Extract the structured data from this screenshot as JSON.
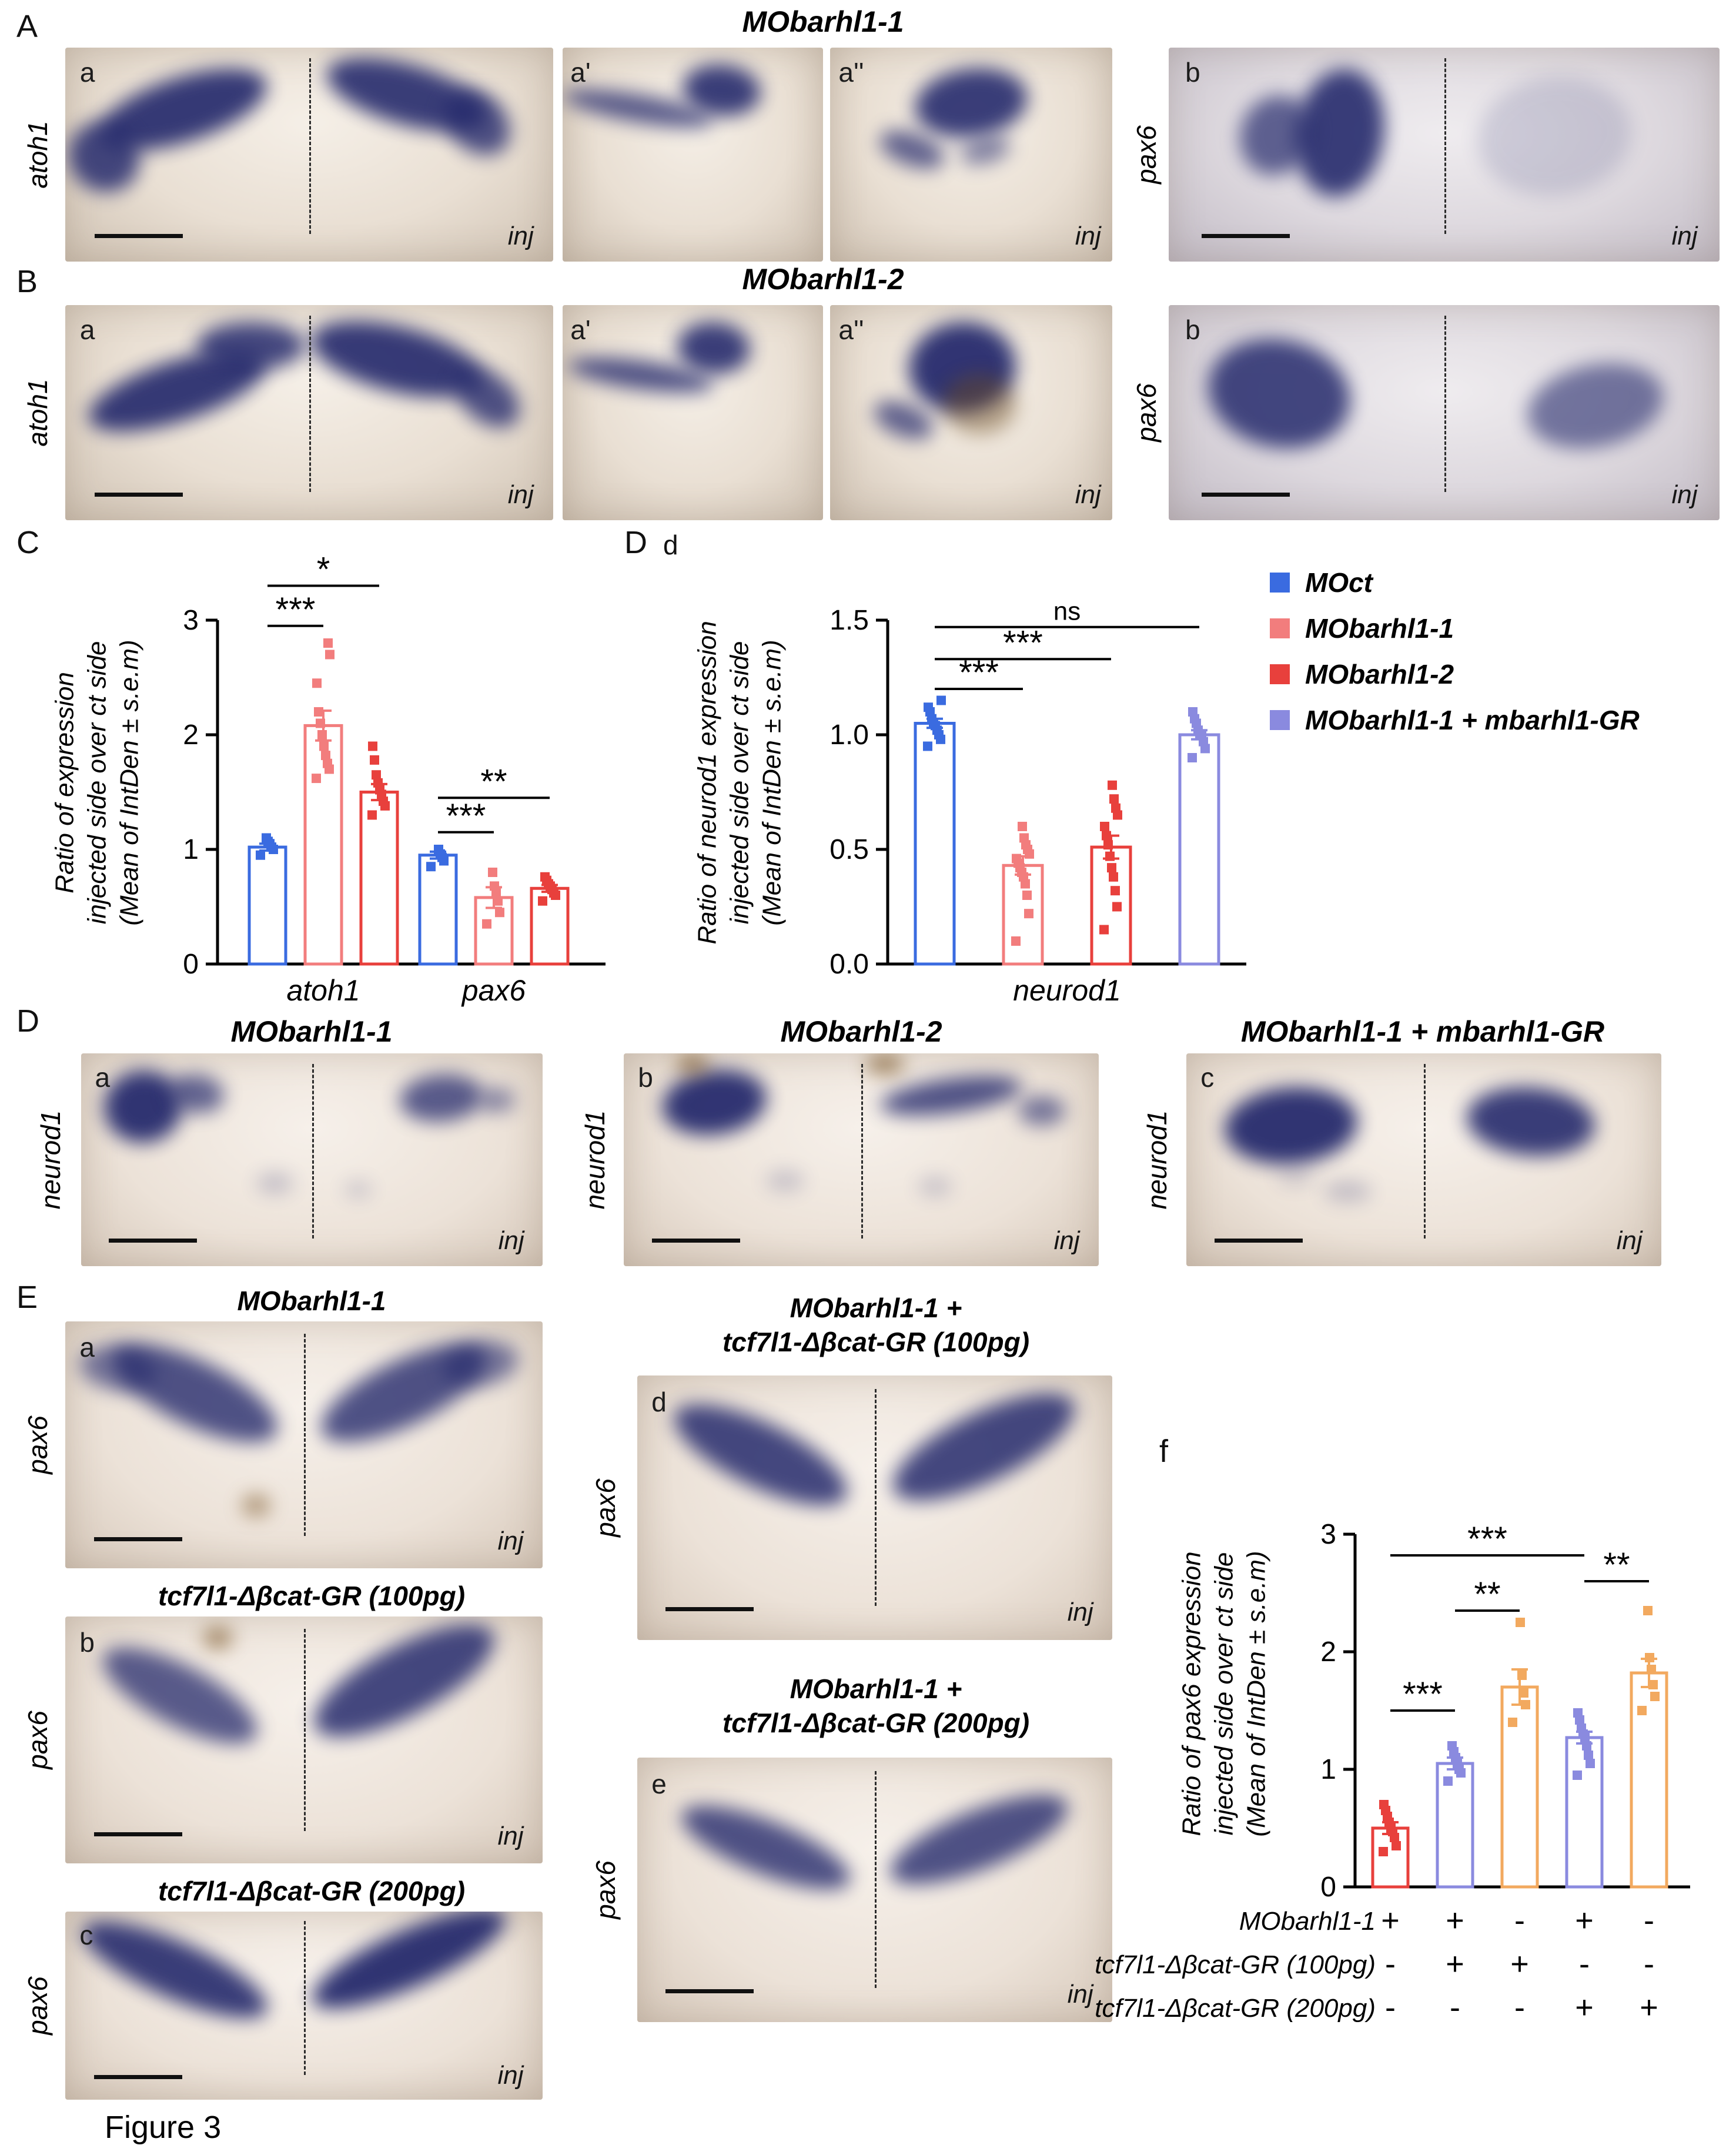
{
  "figure_label": "Figure 3",
  "panel_letters": {
    "A": "A",
    "B": "B",
    "C": "C",
    "D_chart": "D",
    "D_chart_sub": "d",
    "D_img": "D",
    "E": "E",
    "f": "f"
  },
  "panels": {
    "A": {
      "title": "MObarhl1-1",
      "gene_left": "atoh1",
      "gene_right": "pax6",
      "images": [
        {
          "letter": "a",
          "inj": "inj"
        },
        {
          "letter": "a'",
          "inj": ""
        },
        {
          "letter": "a''",
          "inj": "inj"
        },
        {
          "letter": "b",
          "inj": "inj"
        }
      ]
    },
    "B": {
      "title": "MObarhl1-2",
      "gene_left": "atoh1",
      "gene_right": "pax6",
      "images": [
        {
          "letter": "a",
          "inj": "inj"
        },
        {
          "letter": "a'",
          "inj": ""
        },
        {
          "letter": "a''",
          "inj": "inj"
        },
        {
          "letter": "b",
          "inj": "inj"
        }
      ]
    },
    "D_images": {
      "columns": [
        {
          "title": "MObarhl1-1",
          "gene": "neurod1",
          "letter": "a",
          "inj": "inj"
        },
        {
          "title": "MObarhl1-2",
          "gene": "neurod1",
          "letter": "b",
          "inj": "inj"
        },
        {
          "title": "MObarhl1-1 + mbarhl1-GR",
          "gene": "neurod1",
          "letter": "c",
          "inj": "inj"
        }
      ]
    },
    "E": {
      "left": [
        {
          "title": "MObarhl1-1",
          "gene": "pax6",
          "letter": "a",
          "inj": "inj"
        },
        {
          "title": "tcf7l1-Δβcat-GR (100pg)",
          "gene": "pax6",
          "letter": "b",
          "inj": "inj"
        },
        {
          "title": "tcf7l1-Δβcat-GR (200pg)",
          "gene": "pax6",
          "letter": "c",
          "inj": "inj"
        }
      ],
      "middle": [
        {
          "title_line1": "MObarhl1-1 +",
          "title_line2": "tcf7l1-Δβcat-GR (100pg)",
          "gene": "pax6",
          "letter": "d",
          "inj": "inj"
        },
        {
          "title_line1": "MObarhl1-1 +",
          "title_line2": "tcf7l1-Δβcat-GR (200pg)",
          "gene": "pax6",
          "letter": "e",
          "inj": "inj"
        }
      ]
    }
  },
  "legend": {
    "items": [
      {
        "label": "MOct",
        "color": "#3A6BE0"
      },
      {
        "label": "MObarhl1-1",
        "color": "#F27D7D"
      },
      {
        "label": "MObarhl1-2",
        "color": "#E8403C"
      },
      {
        "label": "MObarhl1-1 + mbarhl1-GR",
        "color": "#8A8ADF"
      }
    ]
  },
  "chart_data": [
    {
      "id": "C",
      "type": "bar",
      "ylabel_lines": [
        "Ratio of expression",
        "injected side over ct side",
        "(Mean of IntDen ± s.e.m)"
      ],
      "ylim": [
        0,
        3
      ],
      "yticks": [
        "0",
        "1",
        "2",
        "3"
      ],
      "categories": [
        "atoh1",
        "pax6"
      ],
      "series": [
        {
          "name": "MOct",
          "color": "#3A6BE0",
          "values": [
            1.02,
            0.95
          ],
          "sem": [
            0.03,
            0.03
          ],
          "points": [
            [
              0.95,
              1.0,
              1.02,
              1.05,
              1.07,
              1.1
            ],
            [
              0.85,
              0.9,
              0.93,
              0.96,
              1.0
            ]
          ]
        },
        {
          "name": "MObarhl1-1",
          "color": "#F27D7D",
          "values": [
            2.08,
            0.58
          ],
          "sem": [
            0.13,
            0.09
          ],
          "points": [
            [
              1.62,
              1.7,
              1.75,
              1.82,
              1.9,
              2.0,
              2.1,
              2.2,
              2.45,
              2.7,
              2.8
            ],
            [
              0.35,
              0.45,
              0.55,
              0.62,
              0.68,
              0.8
            ]
          ]
        },
        {
          "name": "MObarhl1-2",
          "color": "#E8403C",
          "values": [
            1.5,
            0.66
          ],
          "sem": [
            0.07,
            0.03
          ],
          "points": [
            [
              1.3,
              1.38,
              1.42,
              1.48,
              1.52,
              1.58,
              1.65,
              1.78,
              1.9
            ],
            [
              0.55,
              0.6,
              0.62,
              0.65,
              0.68,
              0.7,
              0.73,
              0.76
            ]
          ]
        }
      ],
      "brackets": [
        {
          "from": 0,
          "to": 1,
          "y": 2.95,
          "label": "***"
        },
        {
          "from": 0,
          "to": 2,
          "y": 3.3,
          "label": "*"
        },
        {
          "from": 3,
          "to": 4,
          "y": 1.15,
          "label": "***"
        },
        {
          "from": 3,
          "to": 5,
          "y": 1.45,
          "label": "**"
        }
      ]
    },
    {
      "id": "D",
      "type": "bar",
      "ylabel_lines": [
        "Ratio of neurod1 expression",
        "injected side over ct side",
        "(Mean of IntDen ± s.e.m)"
      ],
      "ylim": [
        0,
        1.5
      ],
      "yticks": [
        "0.0",
        "0.5",
        "1.0",
        "1.5"
      ],
      "categories": [
        "neurod1"
      ],
      "bars": [
        {
          "name": "MOct",
          "color": "#3A6BE0",
          "value": 1.05,
          "sem": 0.02,
          "points": [
            0.95,
            0.98,
            1.0,
            1.02,
            1.04,
            1.05,
            1.07,
            1.1,
            1.12,
            1.15
          ]
        },
        {
          "name": "MObarhl1-1",
          "color": "#F27D7D",
          "value": 0.43,
          "sem": 0.04,
          "points": [
            0.1,
            0.22,
            0.3,
            0.35,
            0.38,
            0.4,
            0.42,
            0.44,
            0.46,
            0.48,
            0.5,
            0.52,
            0.55,
            0.6
          ]
        },
        {
          "name": "MObarhl1-2",
          "color": "#E8403C",
          "value": 0.51,
          "sem": 0.05,
          "points": [
            0.15,
            0.25,
            0.32,
            0.38,
            0.42,
            0.47,
            0.52,
            0.56,
            0.6,
            0.65,
            0.68,
            0.72,
            0.78
          ]
        },
        {
          "name": "MObarhl1-1 + mbarhl1-GR",
          "color": "#8A8ADF",
          "value": 1.0,
          "sem": 0.02,
          "points": [
            0.9,
            0.94,
            0.97,
            1.0,
            1.0,
            1.02,
            1.05,
            1.07,
            1.1
          ]
        }
      ],
      "brackets": [
        {
          "from": 0,
          "to": 1,
          "y": 1.2,
          "label": "***"
        },
        {
          "from": 0,
          "to": 2,
          "y": 1.33,
          "label": "***"
        },
        {
          "from": 0,
          "to": 3,
          "y": 1.47,
          "label": "ns"
        }
      ]
    },
    {
      "id": "f",
      "type": "bar",
      "ylabel_lines": [
        "Ratio of pax6 expression",
        "injected side over ct side",
        "(Mean of IntDen ± s.e.m)"
      ],
      "ylim": [
        0,
        3
      ],
      "yticks": [
        "0",
        "1",
        "2",
        "3"
      ],
      "categories": [],
      "bars": [
        {
          "color": "#E8403C",
          "value": 0.5,
          "sem": 0.05,
          "points": [
            0.3,
            0.35,
            0.42,
            0.47,
            0.5,
            0.55,
            0.6,
            0.65,
            0.7
          ]
        },
        {
          "color": "#8A8ADF",
          "value": 1.05,
          "sem": 0.05,
          "points": [
            0.9,
            0.97,
            1.0,
            1.05,
            1.1,
            1.15,
            1.2
          ]
        },
        {
          "color": "#F2A95F",
          "value": 1.7,
          "sem": 0.15,
          "points": [
            1.4,
            1.55,
            1.65,
            1.8,
            2.25
          ]
        },
        {
          "color": "#8A8ADF",
          "value": 1.27,
          "sem": 0.05,
          "points": [
            0.95,
            1.05,
            1.12,
            1.2,
            1.27,
            1.3,
            1.35,
            1.42,
            1.48
          ]
        },
        {
          "color": "#F2A95F",
          "value": 1.82,
          "sem": 0.12,
          "points": [
            1.5,
            1.62,
            1.72,
            1.85,
            1.95,
            2.35
          ]
        }
      ],
      "brackets": [
        {
          "from": 0,
          "to": 1,
          "y": 1.5,
          "label": "***"
        },
        {
          "from": 1,
          "to": 2,
          "y": 2.35,
          "label": "**"
        },
        {
          "from": 0,
          "to": 3,
          "y": 2.82,
          "label": "***"
        },
        {
          "from": 3,
          "to": 4,
          "y": 2.6,
          "label": "**"
        }
      ],
      "matrix": {
        "rows": [
          {
            "label": "MObarhl1-1",
            "symbols": [
              "+",
              "+",
              "-",
              "+",
              "-"
            ]
          },
          {
            "label": "tcf7l1-Δβcat-GR (100pg)",
            "symbols": [
              "-",
              "+",
              "+",
              "-",
              "-"
            ]
          },
          {
            "label": "tcf7l1-Δβcat-GR (200pg)",
            "symbols": [
              "-",
              "-",
              "-",
              "+",
              "+"
            ]
          }
        ]
      }
    }
  ]
}
